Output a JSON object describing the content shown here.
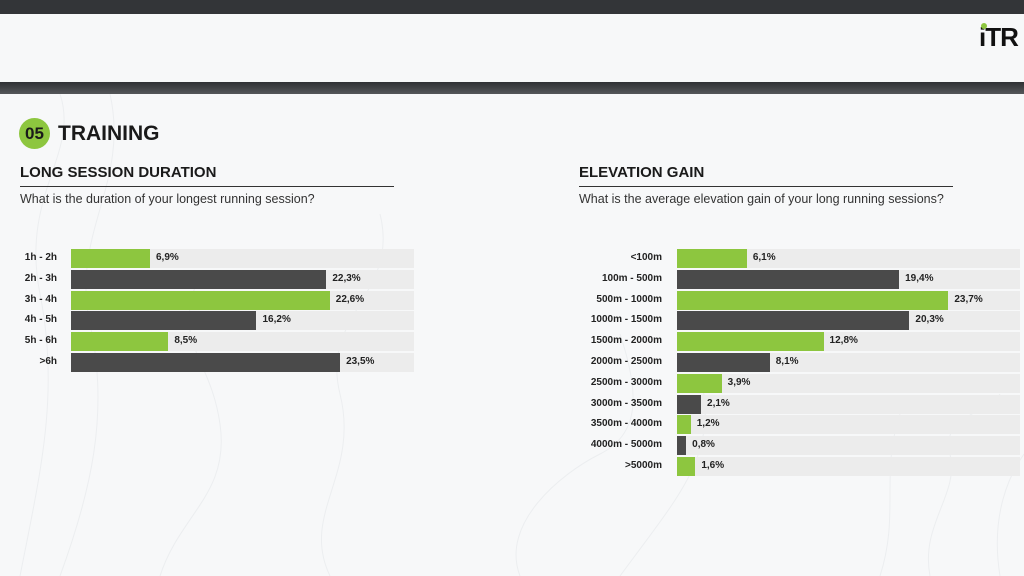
{
  "header": {
    "logo_text": "iTR"
  },
  "section": {
    "number": "05",
    "title": "TRAINING"
  },
  "colors": {
    "green": "#8dc63f",
    "dark": "#4a4a4a",
    "track": "#ececec"
  },
  "chart_data": [
    {
      "type": "bar",
      "orientation": "horizontal",
      "title": "LONG SESSION DURATION",
      "subtitle": "What is the duration of your longest running session?",
      "unit": "%",
      "categories": [
        "1h - 2h",
        "2h - 3h",
        "3h - 4h",
        "4h - 5h",
        "5h - 6h",
        ">6h"
      ],
      "values": [
        6.9,
        22.3,
        22.6,
        16.2,
        8.5,
        23.5
      ],
      "labels": [
        "6,9%",
        "22,3%",
        "22,6%",
        "16,2%",
        "8,5%",
        "23,5%"
      ],
      "xlim": [
        0,
        30
      ],
      "grid": false
    },
    {
      "type": "bar",
      "orientation": "horizontal",
      "title": "ELEVATION GAIN",
      "subtitle": "What is the average elevation gain of your long running sessions?",
      "unit": "%",
      "categories": [
        "<100m",
        "100m - 500m",
        "500m - 1000m",
        "1000m - 1500m",
        "1500m - 2000m",
        "2000m - 2500m",
        "2500m - 3000m",
        "3000m - 3500m",
        "3500m - 4000m",
        "4000m - 5000m",
        ">5000m"
      ],
      "values": [
        6.1,
        19.4,
        23.7,
        20.3,
        12.8,
        8.1,
        3.9,
        2.1,
        1.2,
        0.8,
        1.6
      ],
      "labels": [
        "6,1%",
        "19,4%",
        "23,7%",
        "20,3%",
        "12,8%",
        "8,1%",
        "3,9%",
        "2,1%",
        "1,2%",
        "0,8%",
        "1,6%"
      ],
      "xlim": [
        0,
        30
      ],
      "grid": false
    }
  ]
}
